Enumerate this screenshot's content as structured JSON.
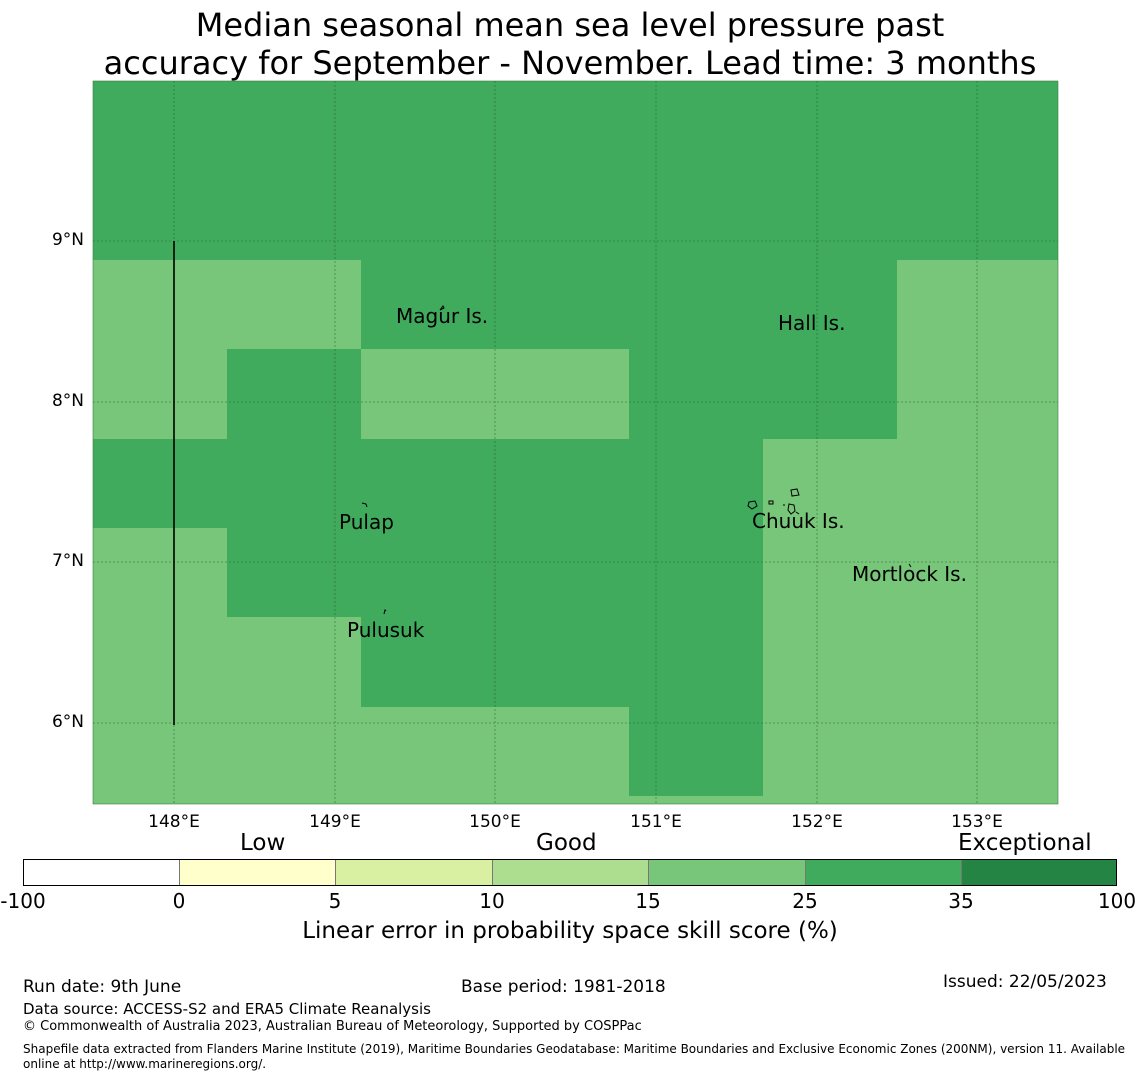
{
  "title": {
    "line1": "Median seasonal mean sea level pressure past",
    "line2": "accuracy for September - November. Lead time: 3 months"
  },
  "map": {
    "lat_ticks": [
      "9°N",
      "8°N",
      "7°N",
      "6°N"
    ],
    "lon_ticks": [
      "148°E",
      "149°E",
      "150°E",
      "151°E",
      "152°E",
      "153°E"
    ],
    "places": [
      "Magur Is.",
      "Hall Is.",
      "Pulap",
      "Chuuk Is.",
      "Mortlock Is.",
      "Pulusuk"
    ],
    "colors": {
      "good": "#78c679",
      "very_good": "#41ab5d"
    }
  },
  "colorbar": {
    "categories": [
      "Low",
      "Good",
      "Exceptional"
    ],
    "ticks": [
      "-100",
      "0",
      "5",
      "10",
      "15",
      "25",
      "35",
      "100"
    ],
    "colors": [
      "#ffffff",
      "#ffffcc",
      "#d9f0a3",
      "#addd8e",
      "#78c679",
      "#41ab5d",
      "#238443"
    ],
    "label": "Linear error in probability space skill score (%)"
  },
  "footer": {
    "run_date": "Run date: 9th June",
    "base_period": "Base period: 1981-2018",
    "issued": "Issued: 22/05/2023",
    "data_source": "Data source: ACCESS-S2 and ERA5 Climate Reanalysis",
    "copyright": "© Commonwealth of Australia 2023, Australian Bureau of Meteorology, Supported by COSPPac",
    "shapefile": "Shapefile data extracted from Flanders Marine Institute (2019), Maritime Boundaries Geodatabase: Maritime Boundaries and Exclusive Economic Zones (200NM), version 11. Available online at http://www.marineregions.org/."
  }
}
